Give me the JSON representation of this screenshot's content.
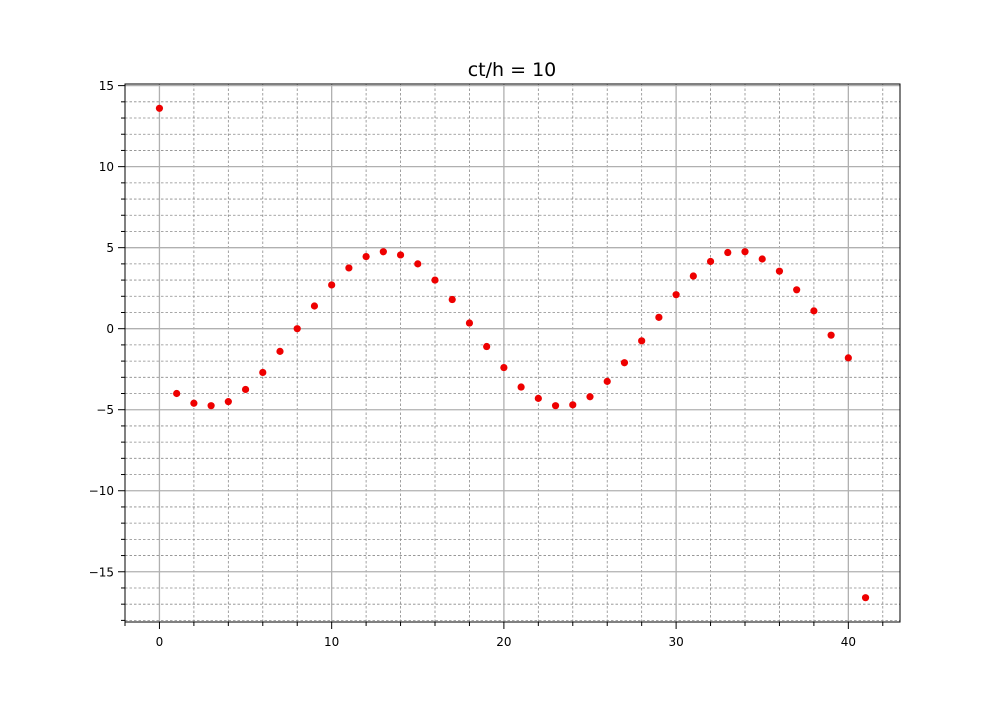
{
  "chart_data": {
    "type": "scatter",
    "title": "ct/h = 10",
    "xlabel": "",
    "ylabel": "",
    "xlim": [
      -2,
      43
    ],
    "ylim": [
      -18.1,
      15.1
    ],
    "x_ticks": [
      0,
      10,
      20,
      30,
      40
    ],
    "y_ticks": [
      -15,
      -10,
      -5,
      0,
      5,
      10,
      15
    ],
    "x_tick_labels": [
      "0",
      "10",
      "20",
      "30",
      "40"
    ],
    "y_tick_labels": [
      "−15",
      "−10",
      "−5",
      "0",
      "5",
      "10",
      "15"
    ],
    "x_minor_step": 2,
    "y_minor_step": 1,
    "grid": {
      "major": true,
      "minor": true
    },
    "marker_color": "#ee0000",
    "major_grid_color": "#b0b0b0",
    "minor_grid_color": "#8a8a8a",
    "series": [
      {
        "x": [
          0,
          1,
          2,
          3,
          4,
          5,
          6,
          7,
          8,
          9,
          10,
          11,
          12,
          13,
          14,
          15,
          16,
          17,
          18,
          19,
          20,
          21,
          22,
          23,
          24,
          25,
          26,
          27,
          28,
          29,
          30,
          31,
          32,
          33,
          34,
          35,
          36,
          37,
          38,
          39,
          40,
          41
        ],
        "y": [
          13.6,
          -4.0,
          -4.6,
          -4.75,
          -4.5,
          -3.75,
          -2.7,
          -1.4,
          0.0,
          1.4,
          2.7,
          3.75,
          4.45,
          4.75,
          4.55,
          4.0,
          3.0,
          1.8,
          0.35,
          -1.1,
          -2.4,
          -3.6,
          -4.3,
          -4.75,
          -4.7,
          -4.2,
          -3.25,
          -2.1,
          -0.75,
          0.7,
          2.1,
          3.25,
          4.15,
          4.7,
          4.75,
          4.3,
          3.55,
          2.4,
          1.1,
          -0.4,
          -1.8,
          -16.6
        ]
      }
    ]
  }
}
